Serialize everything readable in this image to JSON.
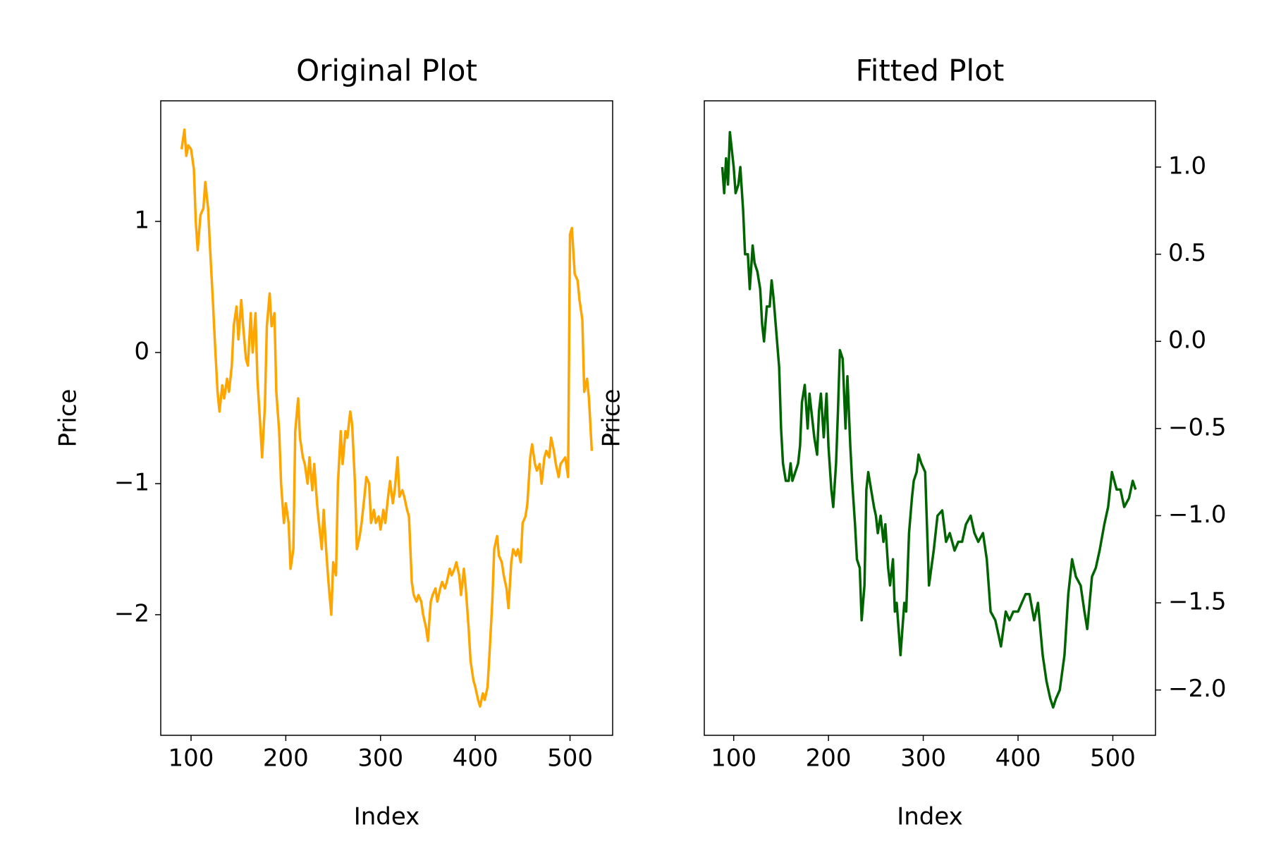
{
  "chart_data": [
    {
      "type": "line",
      "title": "Original Plot",
      "xlabel": "Index",
      "ylabel": "Price",
      "color": "#ffa500",
      "yaxis_side": "left",
      "xlim": [
        68,
        545
      ],
      "ylim": [
        -2.92,
        1.92
      ],
      "xticks": [
        100,
        200,
        300,
        400,
        500
      ],
      "yticks": [
        {
          "value": -2,
          "label": "−2"
        },
        {
          "value": -1,
          "label": "−1"
        },
        0,
        1
      ],
      "x": [
        90,
        93,
        95,
        97,
        100,
        103,
        105,
        107,
        110,
        113,
        115,
        118,
        120,
        123,
        125,
        128,
        130,
        133,
        135,
        138,
        140,
        143,
        145,
        148,
        150,
        153,
        155,
        158,
        160,
        163,
        165,
        168,
        170,
        173,
        175,
        178,
        180,
        183,
        185,
        188,
        190,
        193,
        195,
        198,
        200,
        203,
        205,
        208,
        210,
        213,
        215,
        218,
        220,
        223,
        225,
        228,
        230,
        233,
        235,
        238,
        240,
        243,
        245,
        248,
        250,
        253,
        255,
        258,
        260,
        263,
        265,
        268,
        270,
        273,
        275,
        278,
        280,
        283,
        285,
        288,
        290,
        293,
        295,
        298,
        300,
        303,
        305,
        308,
        310,
        313,
        315,
        318,
        320,
        323,
        325,
        328,
        330,
        333,
        335,
        338,
        340,
        343,
        345,
        348,
        350,
        353,
        355,
        358,
        360,
        363,
        365,
        368,
        370,
        373,
        375,
        378,
        380,
        383,
        385,
        388,
        390,
        393,
        395,
        398,
        400,
        403,
        405,
        408,
        410,
        413,
        415,
        418,
        420,
        423,
        425,
        428,
        430,
        433,
        435,
        438,
        440,
        443,
        445,
        448,
        450,
        453,
        455,
        458,
        460,
        463,
        465,
        468,
        470,
        473,
        475,
        478,
        480,
        483,
        485,
        488,
        490,
        495,
        498,
        500,
        502,
        505,
        508,
        510,
        513,
        515,
        518,
        520,
        523
      ],
      "values": [
        1.55,
        1.7,
        1.5,
        1.58,
        1.55,
        1.4,
        1.0,
        0.78,
        1.05,
        1.1,
        1.3,
        1.1,
        0.8,
        0.4,
        0.1,
        -0.3,
        -0.45,
        -0.25,
        -0.35,
        -0.2,
        -0.3,
        -0.1,
        0.2,
        0.35,
        0.1,
        0.4,
        0.2,
        -0.05,
        -0.1,
        0.3,
        0.0,
        0.3,
        -0.2,
        -0.55,
        -0.8,
        -0.4,
        0.2,
        0.45,
        0.2,
        0.3,
        -0.3,
        -0.6,
        -1.0,
        -1.3,
        -1.15,
        -1.3,
        -1.65,
        -1.5,
        -0.6,
        -0.35,
        -0.65,
        -0.8,
        -0.85,
        -1.0,
        -0.8,
        -1.05,
        -0.85,
        -1.15,
        -1.3,
        -1.5,
        -1.2,
        -1.55,
        -1.75,
        -2.0,
        -1.6,
        -1.7,
        -1.0,
        -0.6,
        -0.85,
        -0.6,
        -0.65,
        -0.45,
        -0.55,
        -1.0,
        -1.5,
        -1.4,
        -1.3,
        -1.1,
        -0.95,
        -1.0,
        -1.3,
        -1.2,
        -1.3,
        -1.25,
        -1.35,
        -1.2,
        -1.3,
        -1.1,
        -0.98,
        -1.15,
        -1.05,
        -0.8,
        -1.1,
        -1.05,
        -1.1,
        -1.2,
        -1.25,
        -1.75,
        -1.85,
        -1.9,
        -1.85,
        -1.9,
        -2.0,
        -2.1,
        -2.2,
        -1.9,
        -1.85,
        -1.8,
        -1.9,
        -1.8,
        -1.75,
        -1.8,
        -1.75,
        -1.65,
        -1.7,
        -1.65,
        -1.6,
        -1.7,
        -1.85,
        -1.65,
        -1.8,
        -2.1,
        -2.35,
        -2.5,
        -2.55,
        -2.65,
        -2.7,
        -2.6,
        -2.65,
        -2.55,
        -2.3,
        -1.9,
        -1.5,
        -1.4,
        -1.55,
        -1.6,
        -1.7,
        -1.8,
        -1.95,
        -1.6,
        -1.5,
        -1.55,
        -1.5,
        -1.6,
        -1.3,
        -1.25,
        -1.15,
        -0.8,
        -0.7,
        -0.85,
        -0.9,
        -0.85,
        -1.0,
        -0.8,
        -0.75,
        -0.8,
        -0.65,
        -0.75,
        -0.85,
        -0.95,
        -0.85,
        -0.8,
        -0.95,
        0.9,
        0.95,
        0.6,
        0.55,
        0.4,
        0.25,
        -0.3,
        -0.2,
        -0.35,
        -0.75
      ]
    },
    {
      "type": "line",
      "title": "Fitted Plot",
      "xlabel": "Index",
      "ylabel": "Price",
      "color": "#006400",
      "yaxis_side": "right",
      "xlim": [
        69,
        545
      ],
      "ylim": [
        -2.26,
        1.38
      ],
      "xticks": [
        100,
        200,
        300,
        400,
        500
      ],
      "yticks": [
        {
          "value": -2.0,
          "label": "−2.0"
        },
        {
          "value": -1.5,
          "label": "−1.5"
        },
        {
          "value": -1.0,
          "label": "−1.0"
        },
        {
          "value": -0.5,
          "label": "−0.5"
        },
        {
          "value": 0,
          "label": "0.0"
        },
        0.5,
        {
          "value": 1.0,
          "label": "1.0"
        }
      ],
      "x": [
        88,
        90,
        92,
        94,
        96,
        98,
        100,
        102,
        105,
        107,
        110,
        112,
        115,
        117,
        120,
        122,
        125,
        128,
        130,
        132,
        135,
        138,
        140,
        142,
        145,
        148,
        150,
        152,
        155,
        158,
        160,
        162,
        165,
        168,
        170,
        172,
        175,
        178,
        180,
        182,
        185,
        188,
        190,
        192,
        195,
        198,
        200,
        203,
        205,
        208,
        210,
        212,
        215,
        218,
        220,
        223,
        225,
        228,
        230,
        233,
        235,
        238,
        240,
        242,
        245,
        248,
        250,
        252,
        255,
        258,
        260,
        263,
        265,
        268,
        270,
        272,
        276,
        278,
        280,
        282,
        285,
        288,
        290,
        293,
        295,
        298,
        302,
        306,
        311,
        315,
        320,
        324,
        328,
        333,
        337,
        341,
        345,
        350,
        354,
        358,
        363,
        367,
        371,
        376,
        380,
        382,
        387,
        391,
        395,
        400,
        404,
        408,
        412,
        417,
        421,
        426,
        430,
        434,
        437,
        440,
        444,
        449,
        453,
        457,
        461,
        466,
        470,
        473,
        478,
        482,
        486,
        491,
        495,
        499,
        504,
        508,
        512,
        517,
        521,
        524
      ],
      "values": [
        1.0,
        0.85,
        1.05,
        0.9,
        1.2,
        1.1,
        1.0,
        0.85,
        0.9,
        1.0,
        0.75,
        0.5,
        0.5,
        0.3,
        0.55,
        0.45,
        0.4,
        0.3,
        0.1,
        0.0,
        0.2,
        0.2,
        0.35,
        0.25,
        0.05,
        -0.15,
        -0.5,
        -0.7,
        -0.8,
        -0.8,
        -0.7,
        -0.8,
        -0.75,
        -0.7,
        -0.6,
        -0.35,
        -0.25,
        -0.5,
        -0.3,
        -0.4,
        -0.55,
        -0.65,
        -0.4,
        -0.3,
        -0.55,
        -0.3,
        -0.6,
        -0.85,
        -0.95,
        -0.7,
        -0.4,
        -0.05,
        -0.1,
        -0.5,
        -0.2,
        -0.6,
        -0.8,
        -1.05,
        -1.25,
        -1.3,
        -1.6,
        -1.4,
        -0.85,
        -0.75,
        -0.85,
        -0.95,
        -1.0,
        -1.1,
        -1.0,
        -1.15,
        -1.05,
        -1.3,
        -1.4,
        -1.25,
        -1.55,
        -1.5,
        -1.8,
        -1.65,
        -1.5,
        -1.55,
        -1.1,
        -0.9,
        -0.8,
        -0.75,
        -0.65,
        -0.7,
        -0.75,
        -1.4,
        -1.2,
        -1.0,
        -0.97,
        -1.15,
        -1.1,
        -1.2,
        -1.15,
        -1.15,
        -1.05,
        -1.0,
        -1.1,
        -1.15,
        -1.1,
        -1.25,
        -1.55,
        -1.6,
        -1.7,
        -1.75,
        -1.55,
        -1.6,
        -1.55,
        -1.55,
        -1.5,
        -1.45,
        -1.45,
        -1.6,
        -1.5,
        -1.8,
        -1.95,
        -2.05,
        -2.1,
        -2.05,
        -2.0,
        -1.8,
        -1.45,
        -1.25,
        -1.35,
        -1.4,
        -1.55,
        -1.65,
        -1.35,
        -1.3,
        -1.2,
        -1.05,
        -0.95,
        -0.75,
        -0.85,
        -0.85,
        -0.95,
        -0.9,
        -0.8,
        -0.85
      ]
    }
  ]
}
